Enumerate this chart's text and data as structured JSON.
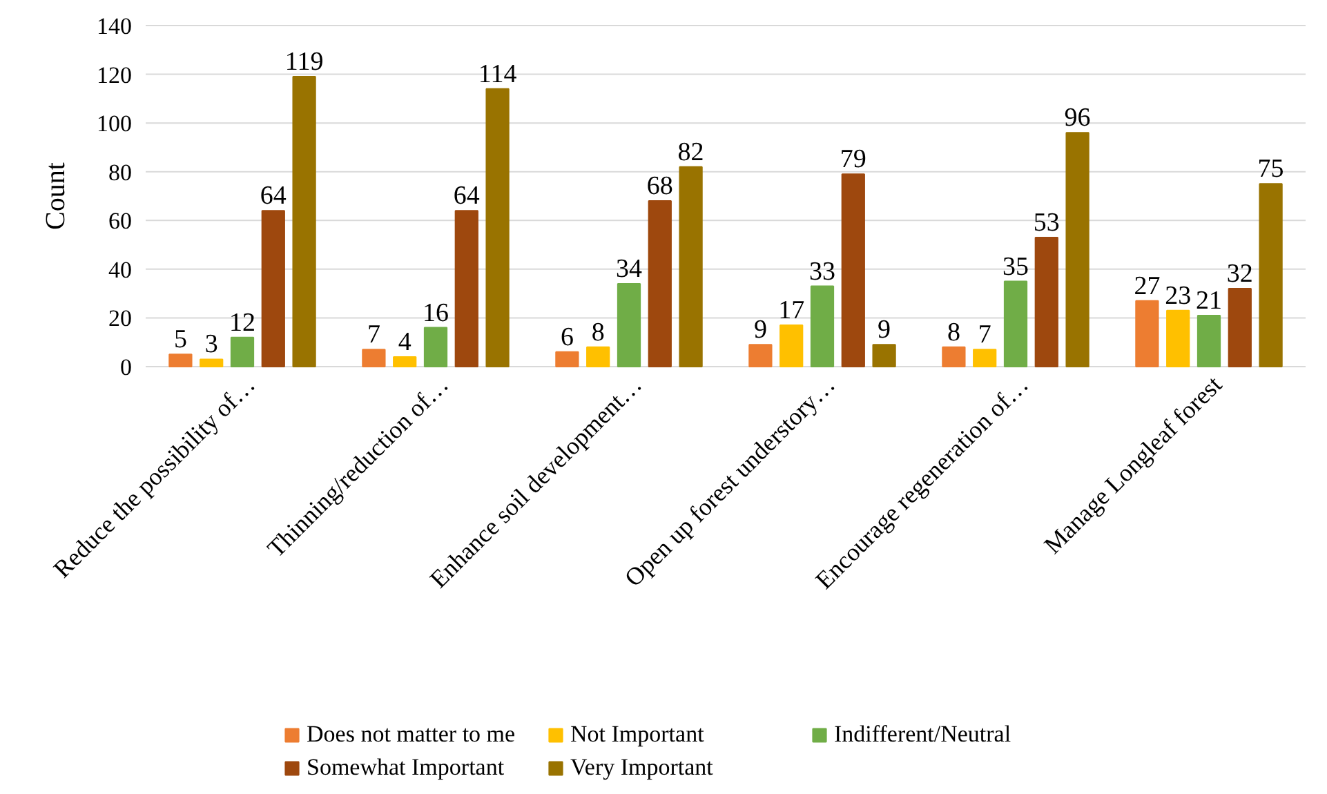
{
  "chart_data": {
    "type": "bar",
    "ylabel": "Count",
    "categories": [
      "Reduce the possibility of…",
      "Thinning/reduction of…",
      "Enhance soil development…",
      "Open up forest understory…",
      "Encourage regeneration of…",
      "Manage Longleaf forest"
    ],
    "series": [
      {
        "name": "Does not matter to me",
        "color": "#ed7d31",
        "values": [
          5,
          7,
          6,
          9,
          8,
          27
        ]
      },
      {
        "name": "Not Important",
        "color": "#ffc000",
        "values": [
          3,
          4,
          8,
          17,
          7,
          23
        ]
      },
      {
        "name": "Indifferent/Neutral",
        "color": "#70ad47",
        "values": [
          12,
          16,
          34,
          33,
          35,
          21
        ]
      },
      {
        "name": "Somewhat Important",
        "color": "#9e480e",
        "values": [
          64,
          64,
          68,
          79,
          53,
          32
        ]
      },
      {
        "name": "Very Important",
        "color": "#997300",
        "values": [
          119,
          114,
          82,
          9,
          96,
          75
        ]
      }
    ],
    "ylim": [
      0,
      140
    ],
    "yticks": [
      0,
      20,
      40,
      60,
      80,
      100,
      120,
      140
    ],
    "grid": "y",
    "legend": "bottom",
    "data_labels": true
  }
}
